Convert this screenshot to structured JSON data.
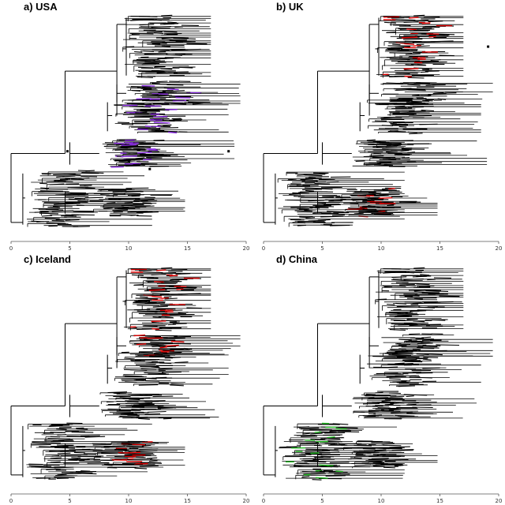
{
  "figure": {
    "panels": [
      {
        "id": "a",
        "title": "a) USA",
        "highlight_color": "#8a2be2",
        "clade_indices": [
          1,
          2,
          3
        ],
        "markers": [
          [
            4.8,
            0.63
          ],
          [
            18.5,
            0.63
          ],
          [
            11.8,
            0.71
          ]
        ]
      },
      {
        "id": "b",
        "title": "b) UK",
        "highlight_color": "#e00000",
        "clade_indices": [
          0,
          4
        ],
        "markers": [
          [
            19.1,
            0.16
          ]
        ]
      },
      {
        "id": "c",
        "title": "c) Iceland",
        "highlight_color": "#e00000",
        "clade_indices": [
          0,
          1,
          4
        ],
        "markers": []
      },
      {
        "id": "d",
        "title": "d) China",
        "highlight_color": "#22bb22",
        "clade_indices": [
          5
        ],
        "markers": []
      }
    ],
    "axis": {
      "min": 0,
      "max": 20,
      "ticks": [
        "0",
        "5",
        "10",
        "15",
        "20"
      ]
    },
    "base_color": "#000000"
  }
}
